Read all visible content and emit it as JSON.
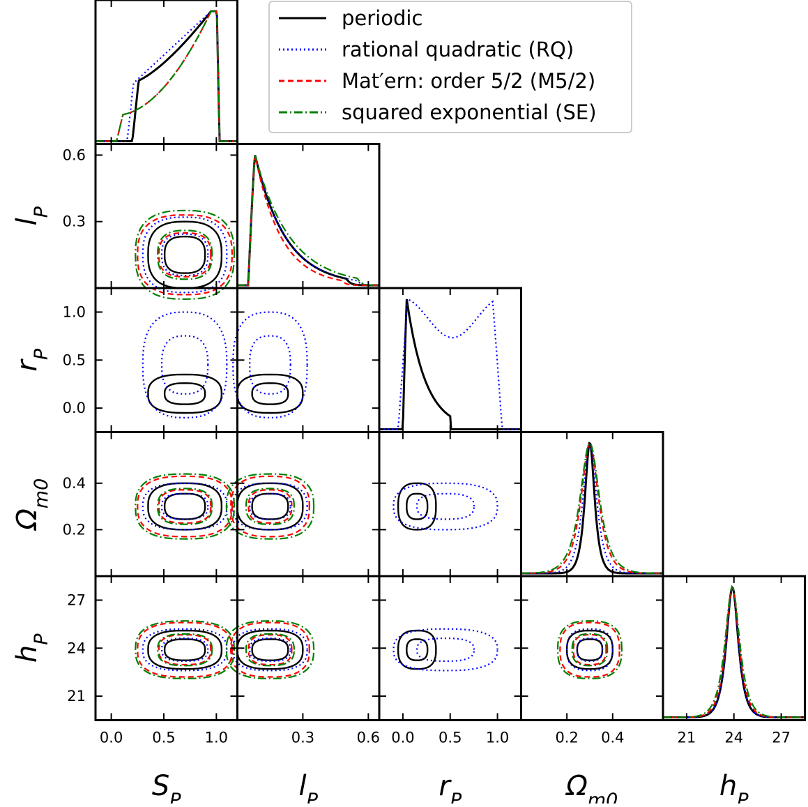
{
  "chart_data": {
    "type": "corner",
    "params": [
      {
        "key": "S",
        "label": "S",
        "sub": "P",
        "range": [
          -0.15,
          1.2
        ],
        "ticks": [
          "0.0",
          "0.5",
          "1.0"
        ],
        "tick_values": [
          0.0,
          0.5,
          1.0
        ]
      },
      {
        "key": "l",
        "label": "l",
        "sub": "P",
        "range": [
          0.0,
          0.65
        ],
        "ticks": [
          "0.3",
          "0.6"
        ],
        "tick_values": [
          0.3,
          0.6
        ]
      },
      {
        "key": "r",
        "label": "r",
        "sub": "P",
        "range": [
          -0.25,
          1.25
        ],
        "ticks": [
          "0.0",
          "0.5",
          "1.0"
        ],
        "tick_values": [
          0.0,
          0.5,
          1.0
        ]
      },
      {
        "key": "Om",
        "label": "Ω",
        "sub": "m0",
        "range": [
          0.0,
          0.62
        ],
        "ticks": [
          "0.2",
          "0.4"
        ],
        "tick_values": [
          0.2,
          0.4
        ]
      },
      {
        "key": "h",
        "label": "h",
        "sub": "P",
        "range": [
          19.5,
          28.5
        ],
        "ticks": [
          "21",
          "24",
          "27"
        ],
        "tick_values": [
          21,
          24,
          27
        ]
      }
    ],
    "series": [
      {
        "name": "periodic",
        "color": "#000000",
        "style": "solid",
        "params": [
          "S",
          "l",
          "r",
          "Om",
          "h"
        ]
      },
      {
        "name": "rational quadratic (RQ)",
        "color": "#0000ff",
        "style": "dotted",
        "params": [
          "S",
          "l",
          "r",
          "Om",
          "h"
        ]
      },
      {
        "name": "Mat′ern: order 5/2 (M5/2)",
        "color": "#ff0000",
        "style": "dashed",
        "params": [
          "S",
          "l",
          "Om",
          "h"
        ]
      },
      {
        "name": "squared exponential (SE)",
        "color": "#008000",
        "style": "dashdot",
        "params": [
          "S",
          "l",
          "Om",
          "h"
        ]
      }
    ],
    "marginals": {
      "S": {
        "periodic": {
          "lo": 0.2,
          "hi": 1.03,
          "peak": 0.94
        },
        "RQ": {
          "lo": 0.15,
          "hi": 1.03,
          "peak": 0.94
        },
        "M52": {
          "lo": 0.05,
          "hi": 1.03,
          "peak": 0.95
        },
        "SE": {
          "lo": 0.05,
          "hi": 1.03,
          "peak": 0.95
        }
      },
      "l": {
        "periodic": {
          "peak": 0.08,
          "tail": 0.5
        },
        "RQ": {
          "peak": 0.08,
          "tail": 0.55
        },
        "M52": {
          "peak": 0.08,
          "tail": 0.48
        },
        "SE": {
          "peak": 0.09,
          "tail": 0.55
        }
      },
      "r": {
        "periodic": {
          "peak": 0.05,
          "tail": 0.5
        },
        "RQ": {
          "lo": -0.05,
          "hi": 1.05,
          "plateau": [
            0.05,
            0.95
          ]
        }
      },
      "Om": {
        "periodic": {
          "mean": 0.3,
          "width": 0.025
        },
        "RQ": {
          "mean": 0.3,
          "width": 0.035
        },
        "M52": {
          "mean": 0.3,
          "width": 0.045
        },
        "SE": {
          "mean": 0.3,
          "width": 0.05
        }
      },
      "h": {
        "periodic": {
          "mean": 23.9,
          "width": 0.45
        },
        "RQ": {
          "mean": 23.9,
          "width": 0.45
        },
        "M52": {
          "mean": 23.9,
          "width": 0.5
        },
        "SE": {
          "mean": 23.9,
          "width": 0.55
        }
      }
    },
    "legend_position": "top-right",
    "grid": false
  }
}
